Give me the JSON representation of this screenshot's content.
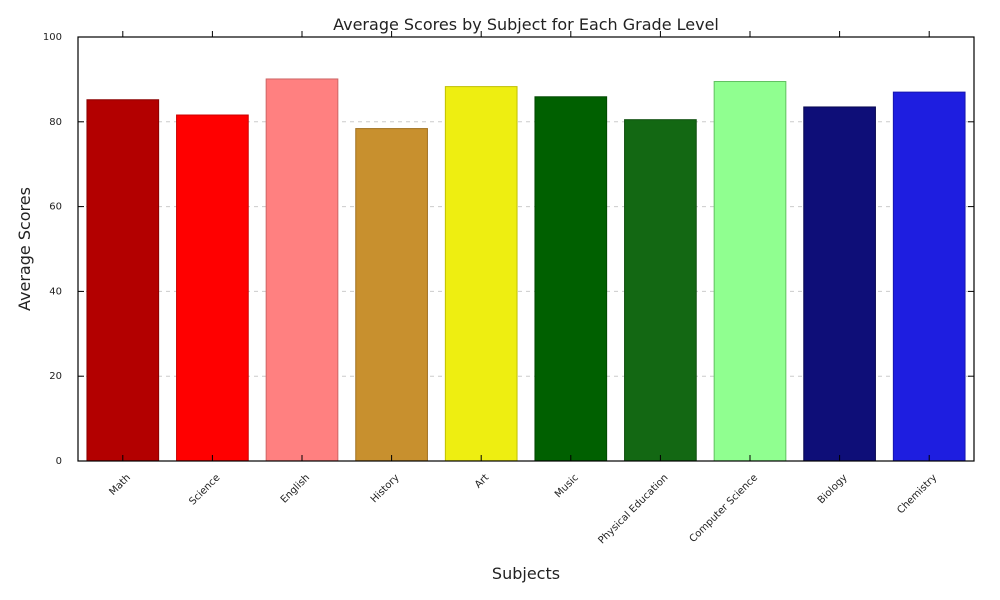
{
  "chart_data": {
    "type": "bar",
    "title": "Average Scores by Subject for Each Grade Level",
    "xlabel": "Subjects",
    "ylabel": "Average Scores",
    "ylim": [
      0,
      100
    ],
    "yticks": [
      0,
      20,
      40,
      60,
      80,
      100
    ],
    "grid": "horizontal dashed",
    "categories": [
      "Math",
      "Science",
      "English",
      "History",
      "Art",
      "Music",
      "Physical Education",
      "Computer Science",
      "Biology",
      "Chemistry"
    ],
    "values": [
      85.2,
      81.6,
      90.1,
      78.4,
      88.3,
      85.9,
      80.5,
      89.5,
      83.5,
      87.0
    ],
    "colors": [
      "#b30000",
      "#ff0000",
      "#ff8080",
      "#c8902e",
      "#eeee11",
      "#006000",
      "#136813",
      "#90ff90",
      "#0e0e78",
      "#1e1ee0"
    ],
    "edge_colors": [
      "#8a0000",
      "#cc0000",
      "#cc6666",
      "#a07020",
      "#c0c000",
      "#004800",
      "#0e4e0e",
      "#60c060",
      "#080850",
      "#1616b0"
    ]
  }
}
